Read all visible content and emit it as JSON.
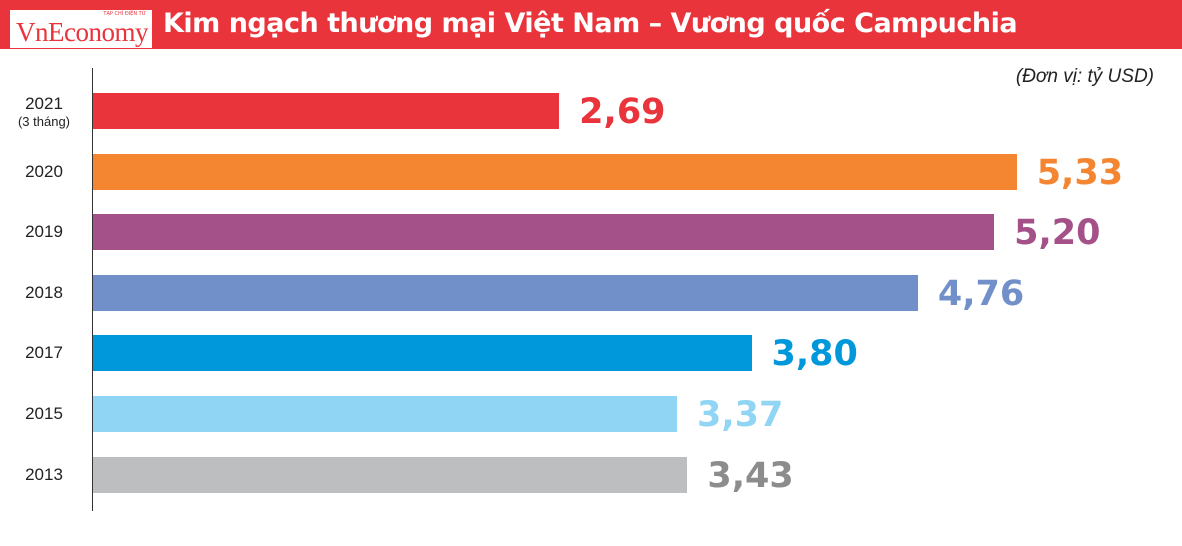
{
  "header": {
    "logo": "VnEconomy",
    "logo_sub": "TẠP CHÍ ĐIỆN TỬ",
    "title": "Kim ngạch thương mại Việt Nam – Vương quốc Campuchia"
  },
  "chart_data": {
    "type": "bar",
    "orientation": "horizontal",
    "title": "Kim ngạch thương mại Việt Nam – Vương quốc Campuchia",
    "unit": "(Đơn vị: tỷ USD)",
    "categories": [
      "2021",
      "2020",
      "2019",
      "2018",
      "2017",
      "2015",
      "2013"
    ],
    "category_notes": [
      "(3 tháng)",
      "",
      "",
      "",
      "",
      "",
      ""
    ],
    "values": [
      2.69,
      5.33,
      5.2,
      4.76,
      3.8,
      3.37,
      3.43
    ],
    "value_labels": [
      "2,69",
      "5,33",
      "5,20",
      "4,76",
      "3,80",
      "3,37",
      "3,43"
    ],
    "colors": [
      "#e9343c",
      "#f48632",
      "#a45189",
      "#7190c9",
      "#0098da",
      "#90d5f4",
      "#bdbec0"
    ],
    "label_colors": [
      "#e9343c",
      "#f48632",
      "#a45189",
      "#7190c9",
      "#0098da",
      "#90d5f4",
      "#8c8c8c"
    ],
    "grid": false,
    "legend": "none"
  }
}
